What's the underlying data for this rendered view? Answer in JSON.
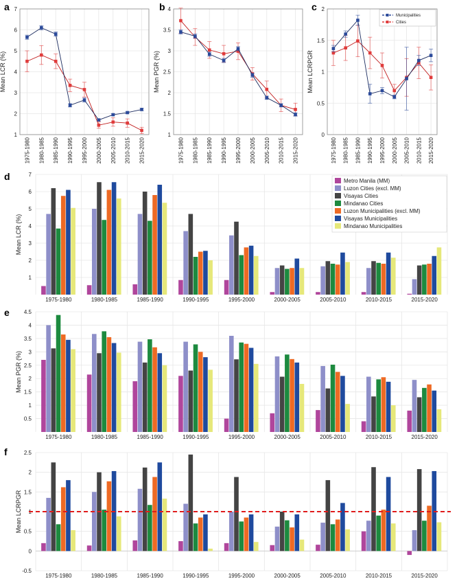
{
  "colors": {
    "municipalities": "#2b4a9a",
    "cities": "#e03b3b",
    "grid": "#e6e6e6",
    "refline": "#e01b1b",
    "groups": [
      "#b0469c",
      "#8e8fc9",
      "#444444",
      "#1d8a3f",
      "#ee6a24",
      "#1f4a9e",
      "#e6e87a"
    ]
  },
  "panels": {
    "a": {
      "label": "a"
    },
    "b": {
      "label": "b"
    },
    "c": {
      "label": "c"
    },
    "d": {
      "label": "d"
    },
    "e": {
      "label": "e"
    },
    "f": {
      "label": "f"
    }
  },
  "chart_data": [
    {
      "panel": "a",
      "type": "line",
      "categories": [
        "1975-1980",
        "1980-1985",
        "1985-1990",
        "1990-1995",
        "1995-2000",
        "2000-2005",
        "2005-2010",
        "2010-2015",
        "2015-2020"
      ],
      "ylabel": "Mean LCR (%)",
      "ylim": [
        1,
        7
      ],
      "yticks": [
        1,
        2,
        3,
        4,
        5,
        6,
        7
      ],
      "series": [
        {
          "name": "Municipalities",
          "color": "#2b4a9a",
          "values": [
            5.65,
            6.1,
            5.8,
            2.4,
            2.65,
            1.7,
            1.95,
            2.05,
            2.2
          ],
          "err": [
            0.1,
            0.1,
            0.1,
            0.08,
            0.1,
            0.05,
            0.05,
            0.05,
            0.06
          ]
        },
        {
          "name": "Cities",
          "color": "#e03b3b",
          "values": [
            4.5,
            4.8,
            4.5,
            3.35,
            3.15,
            1.45,
            1.6,
            1.55,
            1.2
          ],
          "err": [
            0.5,
            0.45,
            0.35,
            0.3,
            0.35,
            0.15,
            0.2,
            0.2,
            0.15
          ]
        }
      ]
    },
    {
      "panel": "b",
      "type": "line",
      "categories": [
        "1975-1980",
        "1980-1985",
        "1985-1990",
        "1990-1995",
        "1995-2000",
        "2000-2005",
        "2005-2010",
        "2010-2015",
        "2015-2020"
      ],
      "ylabel": "Mean PGR (%)",
      "ylim": [
        1,
        4
      ],
      "yticks": [
        1,
        1.5,
        2,
        2.5,
        3,
        3.5,
        4
      ],
      "series": [
        {
          "name": "Municipalities",
          "color": "#2b4a9a",
          "values": [
            3.45,
            3.35,
            2.92,
            2.77,
            3.05,
            2.42,
            1.88,
            1.7,
            1.48
          ],
          "err": [
            0.05,
            0.05,
            0.05,
            0.05,
            0.05,
            0.05,
            0.04,
            0.04,
            0.04
          ]
        },
        {
          "name": "Cities",
          "color": "#e03b3b",
          "values": [
            3.72,
            3.33,
            3.02,
            2.93,
            2.99,
            2.45,
            2.08,
            1.7,
            1.6
          ],
          "err": [
            0.3,
            0.2,
            0.2,
            0.2,
            0.2,
            0.15,
            0.2,
            0.15,
            0.15
          ]
        }
      ]
    },
    {
      "panel": "c",
      "type": "line",
      "categories": [
        "1975-1980",
        "1980-1985",
        "1985-1990",
        "1990-1995",
        "1995-2000",
        "2000-2005",
        "2005-2010",
        "2010-2015",
        "2015-2020"
      ],
      "ylabel": "Mean LCRPGR",
      "ylim": [
        0,
        2
      ],
      "yticks": [
        0,
        0.5,
        1,
        1.5,
        2
      ],
      "legend": [
        "Municipalities",
        "Cities"
      ],
      "series": [
        {
          "name": "Municipalities",
          "color": "#2b4a9a",
          "values": [
            1.37,
            1.6,
            1.82,
            0.65,
            0.7,
            0.6,
            0.89,
            1.18,
            1.26
          ],
          "err": [
            0.05,
            0.05,
            0.08,
            0.15,
            0.05,
            0.03,
            0.5,
            0.08,
            0.1
          ]
        },
        {
          "name": "Cities",
          "color": "#e03b3b",
          "values": [
            1.3,
            1.38,
            1.49,
            1.3,
            1.1,
            0.7,
            0.91,
            1.14,
            0.91
          ],
          "err": [
            0.2,
            0.2,
            0.25,
            0.25,
            0.2,
            0.1,
            0.3,
            0.25,
            0.2
          ]
        }
      ]
    },
    {
      "panel": "d",
      "type": "bar",
      "categories": [
        "1975-1980",
        "1980-1985",
        "1985-1990",
        "1990-1995",
        "1995-2000",
        "2000-2005",
        "2005-2010",
        "2010-2015",
        "2015-2020"
      ],
      "ylabel": "Mean LCR (%)",
      "ylim": [
        0,
        7
      ],
      "yticks": [
        1,
        2,
        3,
        4,
        5,
        6,
        7
      ],
      "legend": [
        "Metro Manila (MM)",
        "Luzon Cities (excl. MM)",
        "Visayas Cities",
        "Mindanao Cities",
        "Luzon Municipalities (excl. MM)",
        "Visayas Municipalities",
        "Mindanao Municipalities"
      ],
      "series": [
        {
          "name": "Metro Manila (MM)",
          "values": [
            0.5,
            0.55,
            0.6,
            0.85,
            0.85,
            0.15,
            0.15,
            0.15,
            0.05
          ]
        },
        {
          "name": "Luzon Cities (excl. MM)",
          "values": [
            4.7,
            5.0,
            4.7,
            3.7,
            3.45,
            1.55,
            1.65,
            1.55,
            0.9
          ]
        },
        {
          "name": "Visayas Cities",
          "values": [
            6.2,
            6.55,
            6.0,
            4.7,
            4.25,
            1.7,
            1.95,
            1.95,
            1.7
          ]
        },
        {
          "name": "Mindanao Cities",
          "values": [
            3.85,
            4.35,
            4.3,
            2.2,
            2.3,
            1.5,
            1.8,
            1.85,
            1.75
          ]
        },
        {
          "name": "Luzon Municipalities (excl. MM)",
          "values": [
            5.75,
            6.1,
            5.8,
            2.5,
            2.75,
            1.55,
            1.75,
            1.8,
            1.8
          ]
        },
        {
          "name": "Visayas Municipalities",
          "values": [
            6.1,
            6.55,
            6.4,
            2.55,
            2.85,
            2.1,
            2.45,
            2.45,
            2.25
          ]
        },
        {
          "name": "Mindanao Municipalities",
          "values": [
            5.05,
            5.6,
            5.35,
            2.0,
            2.25,
            1.55,
            1.9,
            2.15,
            2.75
          ]
        }
      ]
    },
    {
      "panel": "e",
      "type": "bar",
      "categories": [
        "1975-1980",
        "1980-1985",
        "1985-1990",
        "1990-1995",
        "1995-2000",
        "2000-2005",
        "2005-2010",
        "2010-2015",
        "2015-2020"
      ],
      "ylabel": "Mean PGR (%)",
      "ylim": [
        0,
        4.5
      ],
      "yticks": [
        0.5,
        1,
        1.5,
        2,
        2.5,
        3,
        3.5,
        4,
        4.5
      ],
      "series": [
        {
          "name": "Metro Manila (MM)",
          "values": [
            2.7,
            2.15,
            1.9,
            2.1,
            0.5,
            0.7,
            0.82,
            0.4,
            0.8
          ]
        },
        {
          "name": "Luzon Cities (excl. MM)",
          "values": [
            4.0,
            3.67,
            3.38,
            3.38,
            3.6,
            2.83,
            2.47,
            2.07,
            1.95
          ]
        },
        {
          "name": "Visayas Cities",
          "values": [
            3.13,
            2.95,
            2.6,
            2.3,
            2.72,
            2.07,
            1.63,
            1.33,
            1.3
          ]
        },
        {
          "name": "Mindanao Cities",
          "values": [
            4.38,
            3.77,
            3.47,
            3.28,
            3.35,
            2.9,
            2.52,
            1.97,
            1.65
          ]
        },
        {
          "name": "Luzon Municipalities (excl. MM)",
          "values": [
            3.65,
            3.55,
            3.17,
            3.0,
            3.3,
            2.73,
            2.25,
            2.05,
            1.78
          ]
        },
        {
          "name": "Visayas Municipalities",
          "values": [
            3.45,
            3.33,
            2.95,
            2.8,
            3.15,
            2.6,
            2.1,
            1.88,
            1.55
          ]
        },
        {
          "name": "Mindanao Municipalities",
          "values": [
            3.1,
            2.97,
            2.5,
            2.33,
            2.55,
            1.8,
            1.05,
            1.0,
            0.85
          ]
        }
      ]
    },
    {
      "panel": "f",
      "type": "bar",
      "categories": [
        "1975-1980",
        "1980-1985",
        "1985-1990",
        "1990-1995",
        "1995-2000",
        "2000-2005",
        "2005-2010",
        "2010-2015",
        "2015-2020"
      ],
      "ylabel": "Mean LCRPGR",
      "ylim": [
        -0.5,
        2.5
      ],
      "yticks": [
        -0.5,
        0,
        0.5,
        1,
        1.5,
        2,
        2.5
      ],
      "reference_line": 1,
      "series": [
        {
          "name": "Metro Manila (MM)",
          "values": [
            0.2,
            0.14,
            0.27,
            0.25,
            0.2,
            0.15,
            0.16,
            0.5,
            -0.1
          ]
        },
        {
          "name": "Luzon Cities (excl. MM)",
          "values": [
            1.35,
            1.5,
            1.58,
            1.2,
            1.0,
            0.62,
            0.72,
            0.77,
            0.53
          ]
        },
        {
          "name": "Visayas Cities",
          "values": [
            2.25,
            2.0,
            2.12,
            2.45,
            1.88,
            1.0,
            1.8,
            2.13,
            2.08
          ]
        },
        {
          "name": "Mindanao Cities",
          "values": [
            0.68,
            1.05,
            1.17,
            0.7,
            0.75,
            0.78,
            0.68,
            0.9,
            0.77
          ]
        },
        {
          "name": "Luzon Municipalities (excl. MM)",
          "values": [
            1.62,
            1.77,
            1.88,
            0.85,
            0.85,
            0.6,
            0.8,
            1.05,
            1.15
          ]
        },
        {
          "name": "Visayas Municipalities",
          "values": [
            1.8,
            2.03,
            2.25,
            0.93,
            0.93,
            0.93,
            1.22,
            1.88,
            2.03
          ]
        },
        {
          "name": "Mindanao Municipalities",
          "values": [
            0.53,
            0.88,
            1.33,
            0.06,
            0.23,
            0.29,
            0.55,
            0.7,
            0.73
          ]
        }
      ]
    }
  ]
}
